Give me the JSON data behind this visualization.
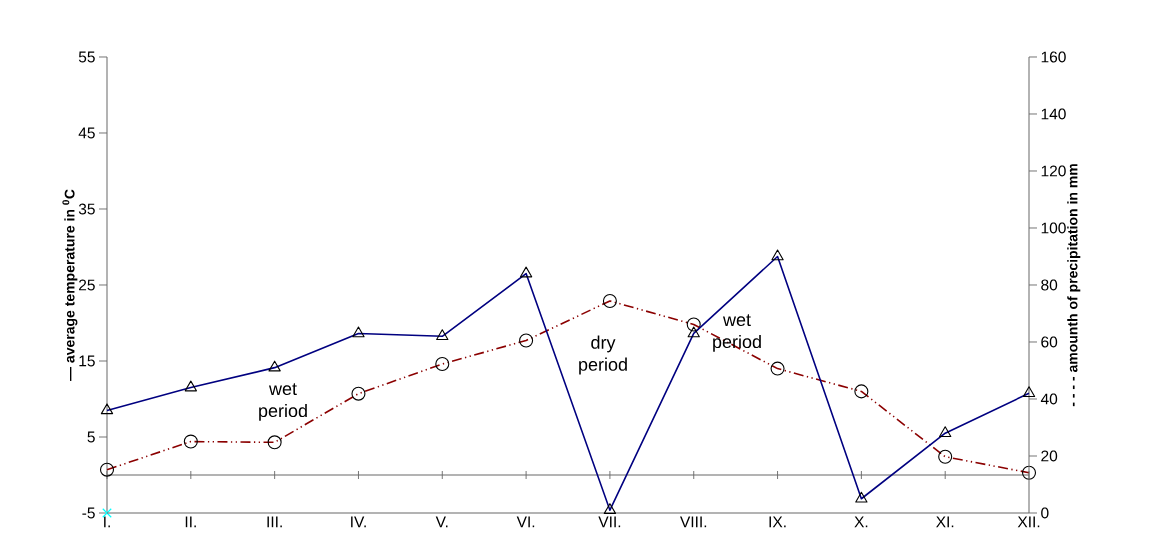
{
  "chart_data": {
    "type": "line",
    "categories": [
      "I.",
      "II.",
      "III.",
      "IV.",
      "V.",
      "VI.",
      "VII.",
      "VIII.",
      "IX.",
      "X.",
      "XI.",
      "XII."
    ],
    "series": [
      {
        "color": "#8b0000",
        "marker": "circle",
        "line_style": "dashed",
        "values": [
          0.7,
          4.4,
          4.3,
          10.7,
          14.6,
          17.7,
          22.9,
          19.8,
          14.0,
          11.0,
          2.4,
          0.3
        ]
      },
      {
        "color": "#000080",
        "marker": "triangle",
        "line_style": "solid",
        "axis": "y2",
        "values": [
          36,
          44,
          51,
          63,
          62,
          84,
          1,
          63,
          90,
          5,
          28,
          42
        ]
      },
      {
        "type": "scatter",
        "color": "#00ffff",
        "marker": "cross",
        "values": [
          -5,
          null,
          null,
          null,
          null,
          null,
          null,
          null,
          null,
          null,
          null,
          null
        ]
      }
    ],
    "ylabel": "— average temperature in $^{0}$C",
    "y2label": "- - - - amounth of precipitation in mm",
    "ylim": [
      -5,
      55
    ],
    "yticks": [
      -5,
      5,
      15,
      25,
      35,
      45,
      55
    ],
    "y2lim": [
      0,
      160
    ],
    "y2ticks": [
      0,
      20,
      40,
      60,
      80,
      100,
      120,
      140,
      160
    ],
    "annotations": [
      "wet period",
      "dry period",
      "wet period"
    ]
  }
}
